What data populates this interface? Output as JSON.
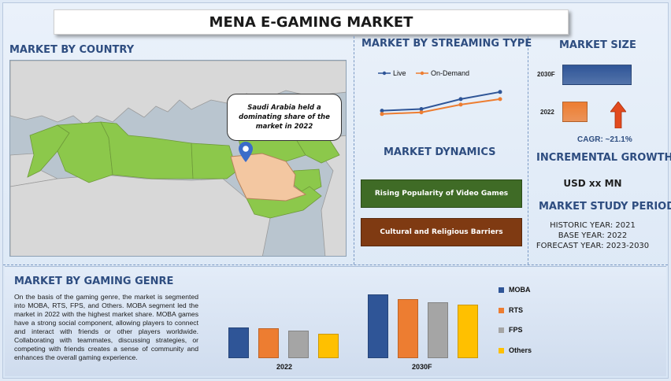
{
  "title": "MENA E-GAMING MARKET",
  "country": {
    "heading": "MARKET BY COUNTRY",
    "callout": "Saudi Arabia held a dominating share of the market in 2022"
  },
  "streaming": {
    "heading": "MARKET BY STREAMING TYPE",
    "legend": [
      {
        "name": "Live",
        "color": "#2f5597"
      },
      {
        "name": "On-Demand",
        "color": "#ed7d31"
      }
    ]
  },
  "dynamics": {
    "heading": "MARKET DYNAMICS",
    "items": [
      {
        "label": "Rising Popularity of Video Games",
        "color": "#3f6b26"
      },
      {
        "label": "Cultural and Religious Barriers",
        "color": "#7f3a12"
      }
    ]
  },
  "size": {
    "heading": "MARKET SIZE",
    "label_2030": "2030F",
    "label_2022": "2022",
    "cagr": "CAGR:  ~21.1%",
    "arrow_icon": "up-arrow-icon"
  },
  "growth": {
    "heading": "INCREMENTAL GROWTH",
    "value": "USD xx MN"
  },
  "period": {
    "heading": "MARKET STUDY PERIOD",
    "historic": "HISTORIC YEAR: 2021",
    "base": "BASE YEAR: 2022",
    "forecast": "FORECAST YEAR: 2023-2030"
  },
  "genre": {
    "heading": "MARKET BY GAMING GENRE",
    "paragraph": "On the basis of the gaming genre, the market is segmented into MOBA, RTS, FPS, and Others. MOBA segment led the market in 2022 with the highest market share. MOBA games have a strong social component, allowing players to connect and interact with friends or other players worldwide. Collaborating with teammates, discussing strategies, or competing with friends creates a sense of community and enhances the overall gaming experience."
  },
  "chart_data": [
    {
      "type": "line",
      "x": [
        1,
        2,
        3,
        4
      ],
      "series": [
        {
          "name": "Live",
          "values": [
            4.2,
            4.5,
            6.3,
            7.6
          ],
          "color": "#2f5597"
        },
        {
          "name": "On-Demand",
          "values": [
            3.6,
            3.9,
            5.3,
            6.3
          ],
          "color": "#ed7d31"
        }
      ],
      "ylim": [
        0,
        10
      ]
    },
    {
      "type": "bar",
      "orientation": "horizontal",
      "categories": [
        "2030F",
        "2022"
      ],
      "values": [
        100,
        36
      ],
      "colors": [
        "#2f5597",
        "#ed7d31"
      ],
      "xlim": [
        0,
        100
      ]
    },
    {
      "type": "bar",
      "categories": [
        "2022",
        "2030F"
      ],
      "series": [
        {
          "name": "MOBA",
          "values": [
            37,
            77
          ],
          "color": "#2f5597"
        },
        {
          "name": "RTS",
          "values": [
            36,
            71
          ],
          "color": "#ed7d31"
        },
        {
          "name": "FPS",
          "values": [
            33,
            68
          ],
          "color": "#a5a5a5"
        },
        {
          "name": "Others",
          "values": [
            30,
            65
          ],
          "color": "#ffc000"
        }
      ],
      "ylim": [
        0,
        100
      ]
    }
  ]
}
